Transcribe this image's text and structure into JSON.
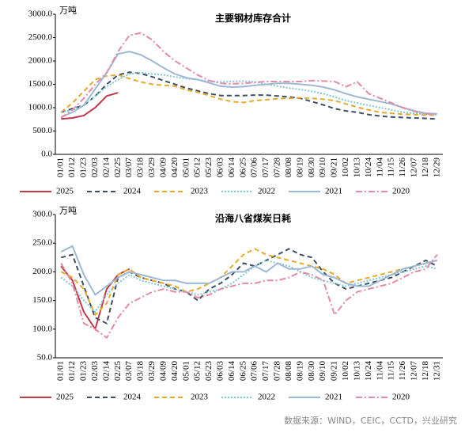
{
  "chart_data": [
    {
      "type": "line",
      "title": "主要钢材库存合计",
      "unit": "万吨",
      "categories": [
        "01/01",
        "01/12",
        "01/23",
        "02/03",
        "02/14",
        "02/25",
        "03/07",
        "03/18",
        "03/29",
        "04/09",
        "04/20",
        "05/01",
        "05/12",
        "05/23",
        "06/03",
        "06/14",
        "06/25",
        "07/06",
        "07/17",
        "07/28",
        "08/08",
        "08/19",
        "08/30",
        "09/10",
        "09/21",
        "10/02",
        "10/13",
        "10/24",
        "11/04",
        "11/15",
        "11/26",
        "12/07",
        "12/18",
        "12/29"
      ],
      "ylim": [
        0,
        3000
      ],
      "yticks": [
        {
          "value": 0,
          "label": "0.0"
        },
        {
          "value": 500,
          "label": "500.0"
        },
        {
          "value": 1000,
          "label": "1000.0"
        },
        {
          "value": 1500,
          "label": "1500.0"
        },
        {
          "value": 2000,
          "label": "2000.0"
        },
        {
          "value": 2500,
          "label": "2500.0"
        },
        {
          "value": 3000,
          "label": "3000.0"
        }
      ],
      "series": [
        {
          "name": "2025",
          "color": "#c0394b",
          "style": "solid",
          "values": [
            760,
            780,
            830,
            1000,
            1250,
            1320,
            null,
            null,
            null,
            null,
            null,
            null,
            null,
            null,
            null,
            null,
            null,
            null,
            null,
            null,
            null,
            null,
            null,
            null,
            null,
            null,
            null,
            null,
            null,
            null,
            null,
            null,
            null,
            null
          ]
        },
        {
          "name": "2024",
          "color": "#3d4e63",
          "style": "dashed",
          "values": [
            900,
            980,
            1050,
            1250,
            1500,
            1700,
            1760,
            1730,
            1660,
            1580,
            1500,
            1420,
            1360,
            1300,
            1260,
            1260,
            1260,
            1270,
            1270,
            1250,
            1230,
            1200,
            1130,
            1060,
            980,
            930,
            900,
            850,
            820,
            800,
            790,
            780,
            770,
            760
          ]
        },
        {
          "name": "2023",
          "color": "#e8a92c",
          "style": "dashed",
          "values": [
            900,
            1100,
            1350,
            1600,
            1680,
            1700,
            1620,
            1550,
            1500,
            1480,
            1460,
            1380,
            1330,
            1260,
            1180,
            1130,
            1110,
            1150,
            1170,
            1190,
            1200,
            1210,
            1200,
            1180,
            1150,
            1080,
            1010,
            950,
            900,
            880,
            860,
            850,
            840,
            840
          ]
        },
        {
          "name": "2022",
          "color": "#7ec8d6",
          "style": "dotted",
          "values": [
            900,
            950,
            1050,
            1250,
            1450,
            1600,
            1720,
            1750,
            1720,
            1700,
            1660,
            1620,
            1600,
            1560,
            1550,
            1560,
            1570,
            1550,
            1500,
            1460,
            1420,
            1390,
            1350,
            1300,
            1230,
            1150,
            1100,
            1050,
            1000,
            950,
            900,
            880,
            860,
            850
          ]
        },
        {
          "name": "2021",
          "color": "#9db8d4",
          "style": "solid",
          "values": [
            800,
            900,
            1050,
            1400,
            1750,
            2150,
            2200,
            2130,
            2000,
            1850,
            1720,
            1640,
            1600,
            1530,
            1460,
            1440,
            1450,
            1480,
            1500,
            1520,
            1520,
            1500,
            1480,
            1440,
            1380,
            1300,
            1230,
            1180,
            1130,
            1080,
            1000,
            930,
            880,
            870
          ]
        },
        {
          "name": "2020",
          "color": "#e58aa6",
          "style": "dashdot",
          "values": [
            780,
            950,
            1200,
            1500,
            1750,
            2200,
            2550,
            2600,
            2450,
            2200,
            2000,
            1850,
            1700,
            1580,
            1520,
            1510,
            1520,
            1540,
            1560,
            1560,
            1560,
            1560,
            1580,
            1570,
            1560,
            1450,
            1550,
            1300,
            1200,
            1100,
            1000,
            920,
            870,
            860
          ]
        }
      ]
    },
    {
      "type": "line",
      "title": "沿海八省煤炭日耗",
      "unit": "万吨",
      "categories": [
        "01/01",
        "01/12",
        "01/23",
        "02/03",
        "02/14",
        "02/25",
        "03/07",
        "03/18",
        "03/29",
        "04/09",
        "04/20",
        "05/01",
        "05/12",
        "05/23",
        "06/03",
        "06/14",
        "06/25",
        "07/06",
        "07/17",
        "07/28",
        "08/08",
        "08/19",
        "08/30",
        "09/10",
        "09/21",
        "10/02",
        "10/13",
        "10/24",
        "11/04",
        "11/15",
        "11/26",
        "12/07",
        "12/18",
        "12/31"
      ],
      "ylim": [
        50,
        300
      ],
      "yticks": [
        {
          "value": 50,
          "label": "50.0"
        },
        {
          "value": 100,
          "label": "100.0"
        },
        {
          "value": 150,
          "label": "150.0"
        },
        {
          "value": 200,
          "label": "200.0"
        },
        {
          "value": 250,
          "label": "250.0"
        },
        {
          "value": 300,
          "label": "300.0"
        }
      ],
      "series": [
        {
          "name": "2025",
          "color": "#c0394b",
          "style": "solid",
          "values": [
            210,
            185,
            130,
            100,
            170,
            195,
            205,
            null,
            null,
            null,
            null,
            null,
            null,
            null,
            null,
            null,
            null,
            null,
            null,
            null,
            null,
            null,
            null,
            null,
            null,
            null,
            null,
            null,
            null,
            null,
            null,
            null,
            null,
            null
          ]
        },
        {
          "name": "2024",
          "color": "#3d4e63",
          "style": "dashed",
          "values": [
            225,
            230,
            175,
            120,
            110,
            190,
            200,
            190,
            185,
            180,
            170,
            165,
            150,
            170,
            180,
            195,
            215,
            210,
            220,
            230,
            240,
            230,
            225,
            200,
            180,
            170,
            175,
            180,
            185,
            190,
            200,
            210,
            220,
            210
          ]
        },
        {
          "name": "2023",
          "color": "#e8a92c",
          "style": "dashed",
          "values": [
            200,
            190,
            170,
            125,
            145,
            195,
            205,
            190,
            185,
            180,
            175,
            165,
            170,
            180,
            190,
            210,
            230,
            240,
            230,
            225,
            220,
            215,
            210,
            205,
            195,
            180,
            185,
            190,
            195,
            200,
            205,
            210,
            215,
            220
          ]
        },
        {
          "name": "2022",
          "color": "#7ec8d6",
          "style": "dotted",
          "values": [
            190,
            175,
            150,
            130,
            160,
            180,
            195,
            185,
            180,
            175,
            170,
            165,
            160,
            165,
            170,
            180,
            195,
            210,
            220,
            215,
            210,
            200,
            190,
            185,
            180,
            175,
            180,
            185,
            190,
            195,
            200,
            205,
            210,
            205
          ]
        },
        {
          "name": "2021",
          "color": "#9db8d4",
          "style": "solid",
          "values": [
            235,
            245,
            195,
            160,
            175,
            190,
            200,
            195,
            190,
            185,
            185,
            180,
            180,
            180,
            190,
            200,
            200,
            210,
            200,
            215,
            205,
            205,
            210,
            195,
            190,
            180,
            175,
            175,
            185,
            195,
            205,
            210,
            215,
            220
          ]
        },
        {
          "name": "2020",
          "color": "#e58aa6",
          "style": "dashdot",
          "values": [
            215,
            180,
            110,
            100,
            85,
            120,
            145,
            155,
            165,
            170,
            165,
            165,
            155,
            160,
            170,
            175,
            180,
            180,
            185,
            185,
            190,
            200,
            195,
            185,
            125,
            150,
            165,
            170,
            175,
            180,
            190,
            200,
            205,
            230
          ]
        }
      ]
    }
  ],
  "source": "数据来源：WIND，CEIC，CCTD，兴业研究"
}
